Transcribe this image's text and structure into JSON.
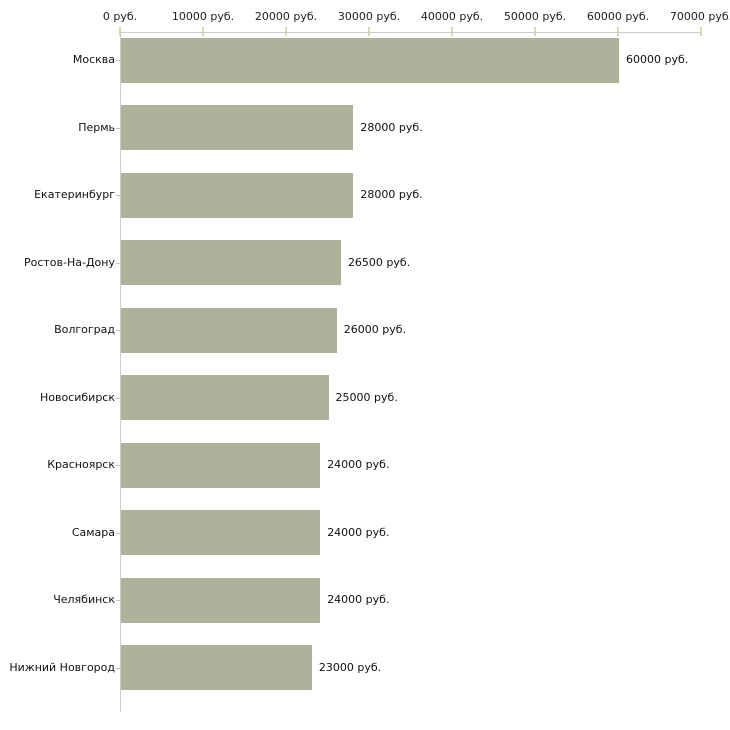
{
  "chart_data": {
    "type": "bar",
    "orientation": "horizontal",
    "title": "",
    "xlabel": "",
    "ylabel": "",
    "categories": [
      "Москва",
      "Пермь",
      "Екатеринбург",
      "Ростов-На-Дону",
      "Волгоград",
      "Новосибирск",
      "Красноярск",
      "Самара",
      "Челябинск",
      "Нижний Новгород"
    ],
    "values": [
      60000,
      28000,
      28000,
      26500,
      26000,
      25000,
      24000,
      24000,
      24000,
      23000
    ],
    "value_labels": [
      "60000 руб.",
      "28000 руб.",
      "28000 руб.",
      "26500 руб.",
      "26000 руб.",
      "25000 руб.",
      "24000 руб.",
      "24000 руб.",
      "24000 руб.",
      "23000 руб."
    ],
    "x_ticks": [
      0,
      10000,
      20000,
      30000,
      40000,
      50000,
      60000,
      70000
    ],
    "x_tick_labels": [
      "0 руб.",
      "10000 руб.",
      "20000 руб.",
      "30000 руб.",
      "40000 руб.",
      "50000 руб.",
      "60000 руб.",
      "70000 руб."
    ],
    "xlim": [
      0,
      70000
    ],
    "grid": false,
    "legend": false,
    "colors": {
      "bar_fill": "#adb29a",
      "axis_line": "#cccccc",
      "x_tick_mark": "#d6d9ac",
      "category_tick_mark": "#c4c4c4",
      "text": "#111111",
      "background": "#ffffff"
    }
  }
}
